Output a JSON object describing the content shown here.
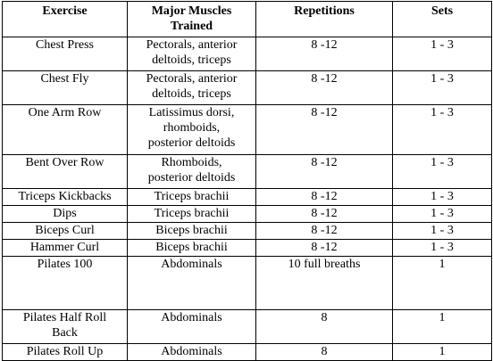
{
  "table": {
    "headers": {
      "exercise": "Exercise",
      "muscles": [
        "Major Muscles",
        "Trained"
      ],
      "repetitions": "Repetitions",
      "sets": "Sets"
    },
    "rows": [
      {
        "exercise": [
          "Chest Press"
        ],
        "muscles": [
          "Pectorals, anterior",
          "deltoids, triceps"
        ],
        "repetitions": "8 -12",
        "sets": "1 - 3"
      },
      {
        "exercise": [
          "Chest Fly"
        ],
        "muscles": [
          "Pectorals, anterior",
          "deltoids, triceps"
        ],
        "repetitions": "8 -12",
        "sets": "1 - 3"
      },
      {
        "exercise": [
          "One Arm Row"
        ],
        "muscles": [
          "Latissimus dorsi,",
          "rhomboids,",
          "posterior deltoids"
        ],
        "repetitions": "8 -12",
        "sets": "1 - 3"
      },
      {
        "exercise": [
          "Bent Over Row"
        ],
        "muscles": [
          "Rhomboids,",
          "posterior deltoids"
        ],
        "repetitions": "8 -12",
        "sets": "1 - 3"
      },
      {
        "exercise": [
          "Triceps Kickbacks"
        ],
        "muscles": [
          "Triceps brachii"
        ],
        "repetitions": "8 -12",
        "sets": "1 - 3"
      },
      {
        "exercise": [
          "Dips"
        ],
        "muscles": [
          "Triceps brachii"
        ],
        "repetitions": "8 -12",
        "sets": "1 - 3"
      },
      {
        "exercise": [
          "Biceps Curl"
        ],
        "muscles": [
          "Biceps brachii"
        ],
        "repetitions": "8 -12",
        "sets": "1 - 3"
      },
      {
        "exercise": [
          "Hammer Curl"
        ],
        "muscles": [
          "Biceps brachii"
        ],
        "repetitions": "8 -12",
        "sets": "1 - 3"
      },
      {
        "exercise": [
          "Pilates 100"
        ],
        "muscles": [
          "Abdominals"
        ],
        "repetitions": "10 full breaths",
        "sets": "1"
      },
      {
        "exercise": [
          "Pilates Half Roll",
          "Back"
        ],
        "muscles": [
          "Abdominals"
        ],
        "repetitions": "8",
        "sets": "1"
      },
      {
        "exercise": [
          "Pilates Roll Up"
        ],
        "muscles": [
          "Abdominals"
        ],
        "repetitions": "8",
        "sets": "1"
      }
    ]
  }
}
